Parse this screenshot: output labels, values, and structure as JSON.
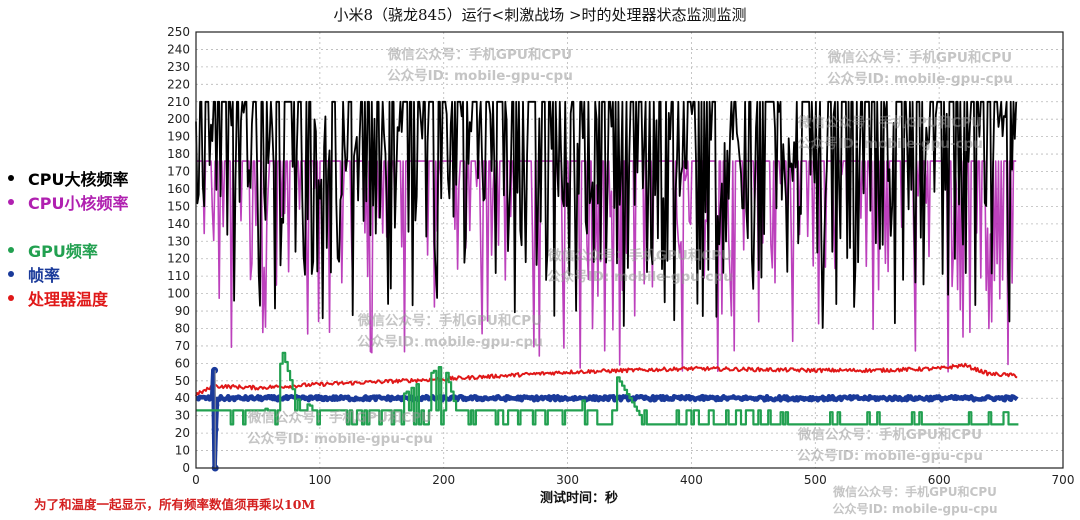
{
  "title": "小米8（骁龙845）运行<刺激战场 >时的处理器状态监测监测",
  "legend": [
    {
      "label": "CPU大核频率",
      "color": "#000000"
    },
    {
      "label": "CPU小核频率",
      "color": "#b020b0"
    },
    {
      "label": "GPU频率",
      "color": "#22a050"
    },
    {
      "label": "帧率",
      "color": "#1a3a9a"
    },
    {
      "label": "处理器温度",
      "color": "#e01818"
    }
  ],
  "xlabel": "测试时间：秒",
  "note": "为了和温度一起显示，所有频率数值须再乘以10M",
  "watermarks": [
    {
      "line1": "微信公众号：手机GPU和CPU",
      "line2": "公众号ID: mobile-gpu-cpu"
    }
  ],
  "chart_data": {
    "type": "line",
    "title": "小米8（骁龙845）运行<刺激战场 >时的处理器状态监测监测",
    "xlabel": "测试时间：秒",
    "ylabel": "",
    "xlim": [
      0,
      700
    ],
    "ylim": [
      0,
      250
    ],
    "xticks": [
      0,
      100,
      200,
      300,
      400,
      500,
      600,
      700
    ],
    "yticks": [
      0,
      10,
      20,
      30,
      40,
      50,
      60,
      70,
      80,
      90,
      100,
      110,
      120,
      130,
      140,
      150,
      160,
      170,
      180,
      190,
      200,
      210,
      220,
      230,
      240,
      250
    ],
    "grid": true,
    "legend_position": "left outside",
    "annotation": "为了和温度一起显示，所有频率数值须再乘以10M",
    "series": [
      {
        "name": "CPU大核频率",
        "color": "#000000",
        "description": "rapidly oscillates between ~210 (max) and 80-180, dips as low as ~80",
        "max": 210,
        "min": 80,
        "x_range": [
          0,
          663
        ]
      },
      {
        "name": "CPU小核频率",
        "color": "#b020b0",
        "description": "mostly at ~176 with frequent drops to 55-120",
        "max": 176,
        "min": 55,
        "x_range": [
          0,
          663
        ]
      },
      {
        "name": "GPU频率",
        "color": "#22a050",
        "description": "mostly 25-35 with bursts up to ~50-66 around 60-80s, 200s, 330-360s",
        "x": [
          0,
          20,
          40,
          60,
          70,
          80,
          100,
          150,
          200,
          210,
          250,
          300,
          340,
          360,
          400,
          500,
          600,
          663
        ],
        "values": [
          25,
          30,
          30,
          35,
          66,
          40,
          33,
          33,
          60,
          33,
          33,
          33,
          52,
          28,
          26,
          25,
          25,
          25
        ]
      },
      {
        "name": "帧率",
        "color": "#1a3a9a",
        "description": "steady ~40 fps; initial spike to 56 and dip to 0 near t=15s",
        "x": [
          0,
          15,
          16,
          17,
          100,
          200,
          300,
          400,
          500,
          600,
          663
        ],
        "values": [
          40,
          56,
          0,
          40,
          40,
          40,
          40,
          40,
          40,
          40,
          41
        ]
      },
      {
        "name": "处理器温度",
        "color": "#e01818",
        "description": "rises from ~42 to ~59 then falls to ~53",
        "x": [
          0,
          15,
          50,
          100,
          200,
          300,
          350,
          400,
          500,
          550,
          600,
          620,
          640,
          663
        ],
        "values": [
          42,
          47,
          46,
          48,
          51,
          55,
          56,
          57,
          56,
          56,
          57,
          59,
          54,
          53
        ]
      }
    ]
  }
}
